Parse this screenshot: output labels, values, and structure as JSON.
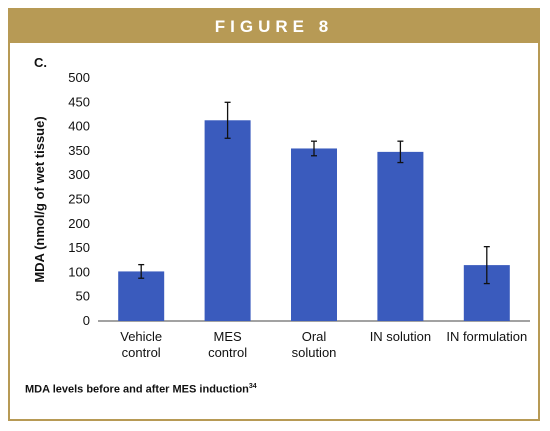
{
  "figure": {
    "banner": "FIGURE 8",
    "caption": "MDA levels before and after MES induction",
    "caption_ref": "34",
    "border_color": "#b79a55"
  },
  "chart_data": {
    "type": "bar",
    "panel_label": "C.",
    "title": "",
    "xlabel": "",
    "ylabel": "MDA (nmol/g of wet tissue)",
    "ylim": [
      0,
      500
    ],
    "yticks": [
      0,
      50,
      100,
      150,
      200,
      250,
      300,
      350,
      400,
      450,
      500
    ],
    "categories": [
      [
        "Vehicle",
        "control"
      ],
      [
        "MES",
        "control"
      ],
      [
        "Oral",
        "solution"
      ],
      [
        "IN solution"
      ],
      [
        "IN formulation"
      ]
    ],
    "values": [
      102,
      413,
      355,
      348,
      115
    ],
    "errors": [
      14,
      37,
      15,
      22,
      38
    ],
    "bar_color": "#3a5bbd",
    "grid": false,
    "legend": "none"
  }
}
